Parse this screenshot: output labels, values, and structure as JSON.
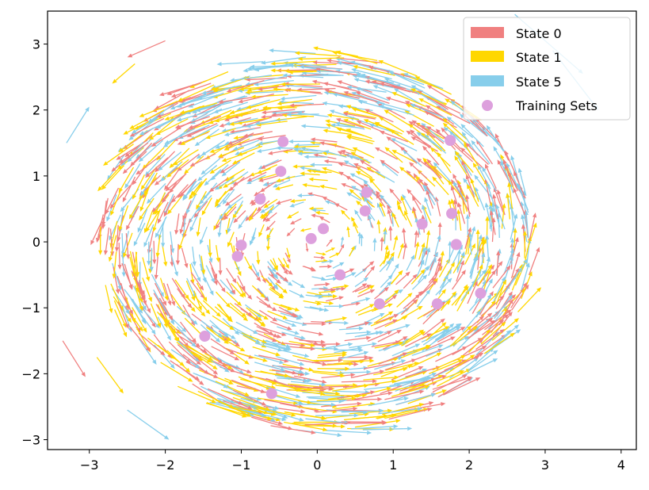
{
  "chart_data": {
    "type": "quiver-scatter",
    "xlim": [
      -3.55,
      4.2
    ],
    "ylim": [
      -3.15,
      3.5
    ],
    "x_ticks": [
      -3,
      -2,
      -1,
      0,
      1,
      2,
      3,
      4
    ],
    "y_ticks": [
      -3,
      -2,
      -1,
      0,
      1,
      2,
      3
    ],
    "x_tick_labels": [
      "−3",
      "−2",
      "−1",
      "0",
      "1",
      "2",
      "3",
      "4"
    ],
    "y_tick_labels": [
      "−3",
      "−2",
      "−1",
      "0",
      "1",
      "2",
      "3"
    ],
    "grid": false,
    "legend_position": "top-right",
    "field": "counter-clockwise rotation about origin",
    "quiver_series": [
      {
        "name": "State 0",
        "color": "#F08080"
      },
      {
        "name": "State 1",
        "color": "#FFD700"
      },
      {
        "name": "State 5",
        "color": "#87CEEB"
      }
    ],
    "scatter_series": {
      "name": "Training Sets",
      "color": "#DDA0DD",
      "points": [
        [
          -0.45,
          1.52
        ],
        [
          -0.48,
          1.07
        ],
        [
          -0.75,
          0.65
        ],
        [
          -1.0,
          -0.05
        ],
        [
          -1.05,
          -0.22
        ],
        [
          -0.08,
          0.05
        ],
        [
          0.08,
          0.2
        ],
        [
          0.3,
          -0.5
        ],
        [
          0.65,
          0.75
        ],
        [
          0.63,
          0.47
        ],
        [
          0.82,
          -0.94
        ],
        [
          1.38,
          0.27
        ],
        [
          1.75,
          1.54
        ],
        [
          1.77,
          0.43
        ],
        [
          1.83,
          -0.04
        ],
        [
          1.58,
          -0.94
        ],
        [
          2.15,
          -0.78
        ],
        [
          -1.48,
          -1.43
        ],
        [
          -0.6,
          -2.3
        ]
      ]
    },
    "outer_arrows": [
      [
        -3.38,
        -1.42,
        0.6,
        -2.6
      ],
      [
        -3.1,
        2.0,
        -0.75,
        -2.0
      ],
      [
        -2.05,
        3.07,
        -2.3,
        0.2
      ]
    ]
  },
  "legend": {
    "state0": "State 0",
    "state1": "State 1",
    "state5": "State 5",
    "training": "Training Sets"
  }
}
